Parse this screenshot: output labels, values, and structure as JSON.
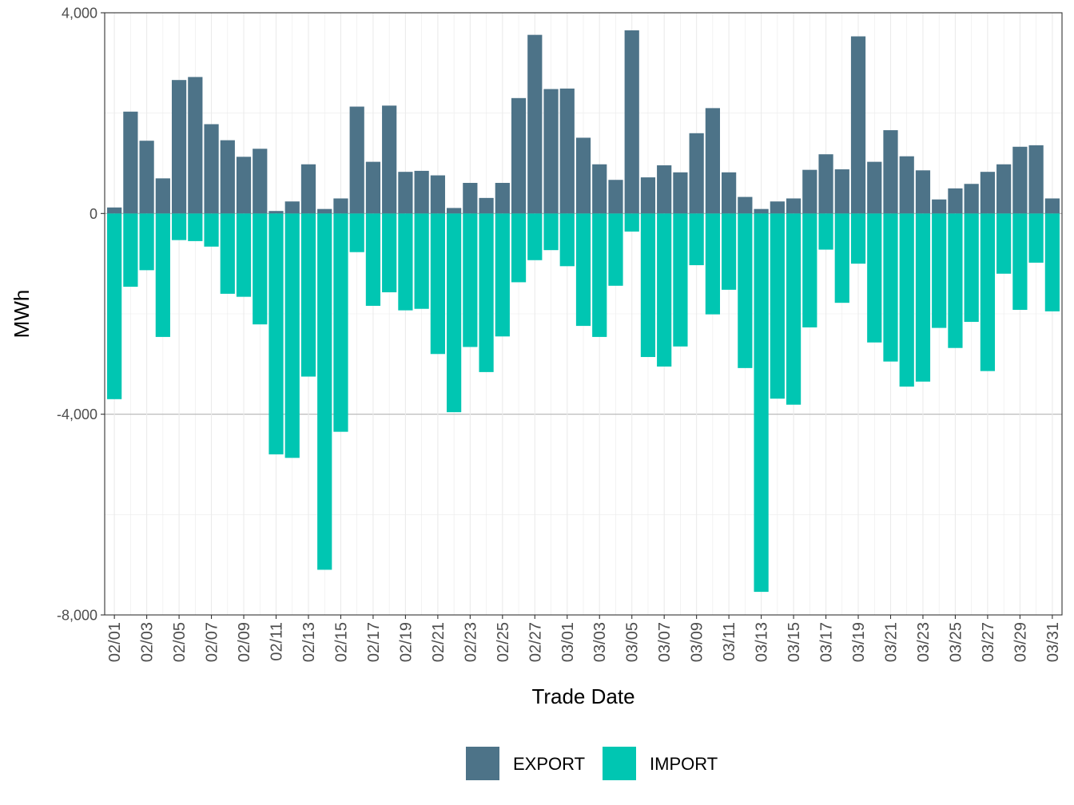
{
  "chart_data": {
    "type": "bar",
    "title": "",
    "xlabel": "Trade Date",
    "ylabel": "MWh",
    "ylim": [
      -8000,
      4000
    ],
    "yticks": [
      4000,
      0,
      -4000,
      -8000
    ],
    "ytick_labels": [
      "4,000",
      "0",
      "-4,000",
      "-8,000"
    ],
    "grid": true,
    "legend_position": "bottom",
    "categories": [
      "02/01",
      "02/02",
      "02/03",
      "02/04",
      "02/05",
      "02/06",
      "02/07",
      "02/08",
      "02/09",
      "02/10",
      "02/11",
      "02/12",
      "02/13",
      "02/14",
      "02/15",
      "02/16",
      "02/17",
      "02/18",
      "02/19",
      "02/20",
      "02/21",
      "02/22",
      "02/23",
      "02/24",
      "02/25",
      "02/26",
      "02/27",
      "02/28",
      "03/01",
      "03/02",
      "03/03",
      "03/04",
      "03/05",
      "03/06",
      "03/07",
      "03/08",
      "03/09",
      "03/10",
      "03/11",
      "03/12",
      "03/13",
      "03/14",
      "03/15",
      "03/16",
      "03/17",
      "03/18",
      "03/19",
      "03/20",
      "03/21",
      "03/22",
      "03/23",
      "03/24",
      "03/25",
      "03/26",
      "03/27",
      "03/28",
      "03/29",
      "03/30",
      "03/31"
    ],
    "tick_labels": [
      "02/01",
      "02/03",
      "02/05",
      "02/07",
      "02/09",
      "02/11",
      "02/13",
      "02/15",
      "02/17",
      "02/19",
      "02/21",
      "02/23",
      "02/25",
      "02/27",
      "03/01",
      "03/03",
      "03/05",
      "03/07",
      "03/09",
      "03/11",
      "03/13",
      "03/15",
      "03/17",
      "03/19",
      "03/21",
      "03/23",
      "03/25",
      "03/27",
      "03/29",
      "03/31"
    ],
    "series": [
      {
        "name": "EXPORT",
        "color": "#4d7388",
        "values": [
          120,
          2030,
          1450,
          700,
          2660,
          2720,
          1780,
          1460,
          1130,
          1290,
          50,
          240,
          980,
          90,
          300,
          2130,
          1030,
          2150,
          830,
          850,
          760,
          110,
          610,
          310,
          610,
          2300,
          3560,
          2480,
          2490,
          1510,
          980,
          670,
          3650,
          720,
          960,
          820,
          1600,
          2100,
          820,
          330,
          90,
          240,
          300,
          870,
          1180,
          880,
          3530,
          1030,
          1660,
          1140,
          860,
          280,
          500,
          590,
          830,
          980,
          1330,
          1360,
          300
        ]
      },
      {
        "name": "IMPORT",
        "color": "#00c6b2",
        "values": [
          -3700,
          -1460,
          -1130,
          -2460,
          -530,
          -550,
          -660,
          -1600,
          -1660,
          -2210,
          -4800,
          -4870,
          -3250,
          -7100,
          -4350,
          -770,
          -1840,
          -1570,
          -1930,
          -1900,
          -2800,
          -3960,
          -2660,
          -3160,
          -2450,
          -1370,
          -930,
          -730,
          -1050,
          -2240,
          -2460,
          -1440,
          -360,
          -2860,
          -3050,
          -2650,
          -1030,
          -2010,
          -1520,
          -3080,
          -7540,
          -3690,
          -3810,
          -2270,
          -720,
          -1780,
          -1000,
          -2570,
          -2950,
          -3450,
          -3350,
          -2280,
          -2680,
          -2160,
          -3140,
          -1200,
          -1920,
          -980,
          -1950
        ]
      }
    ]
  }
}
